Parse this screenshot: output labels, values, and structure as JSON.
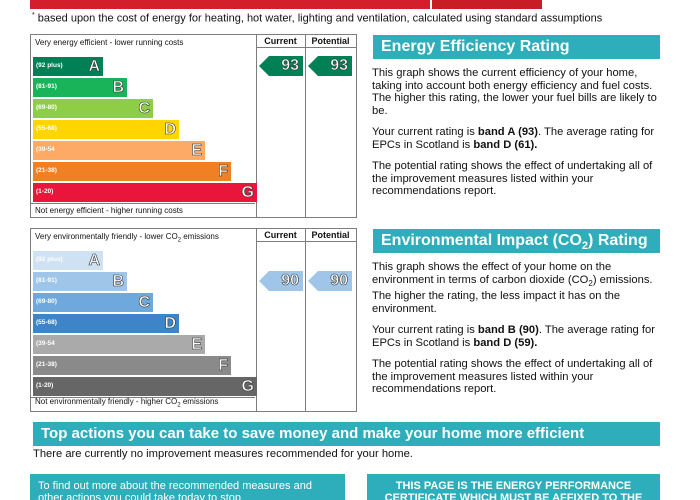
{
  "footnote": {
    "marker": "*",
    "text": "based upon the cost of energy for heating, hot water, lighting and ventilation, calculated using standard assumptions"
  },
  "columns": {
    "current": "Current",
    "potential": "Potential"
  },
  "energy_chart": {
    "top_label": "Very energy efficient - lower running costs",
    "bottom_label": "Not energy efficient - higher running costs",
    "bands": [
      {
        "range": "(92 plus)",
        "letter": "A",
        "color": "#008054"
      },
      {
        "range": "(81-91)",
        "letter": "B",
        "color": "#19b459"
      },
      {
        "range": "(69-80)",
        "letter": "C",
        "color": "#8dce46"
      },
      {
        "range": "(55-68)",
        "letter": "D",
        "color": "#ffd500"
      },
      {
        "range": "(39-54",
        "letter": "E",
        "color": "#fcaa65"
      },
      {
        "range": "(21-38)",
        "letter": "F",
        "color": "#ef8023"
      },
      {
        "range": "(1-20)",
        "letter": "G",
        "color": "#e9153b"
      }
    ],
    "current": 93,
    "potential": 93,
    "arrow_color": "#008054",
    "arrow_text_color": "#ffffff"
  },
  "environment_chart": {
    "top_label_pre": "Very environmentally friendly - lower CO",
    "top_label_sub": "2",
    "top_label_post": " emissions",
    "bottom_label_pre": "Not environmentally friendly - higher CO",
    "bottom_label_sub": "2",
    "bottom_label_post": " emissions",
    "bands": [
      {
        "range": "(92 plus)",
        "letter": "A",
        "color": "#cfe2f3"
      },
      {
        "range": "(81-91)",
        "letter": "B",
        "color": "#9fc5e8"
      },
      {
        "range": "(69-80)",
        "letter": "C",
        "color": "#6fa8dc"
      },
      {
        "range": "(55-68)",
        "letter": "D",
        "color": "#3d85c6"
      },
      {
        "range": "(39-54",
        "letter": "E",
        "color": "#aaaaaa"
      },
      {
        "range": "(21-38)",
        "letter": "F",
        "color": "#8a8a8a"
      },
      {
        "range": "(1-20)",
        "letter": "G",
        "color": "#666666"
      }
    ],
    "current": 90,
    "potential": 90,
    "arrow_color": "#9fc5e8",
    "arrow_text_color": "#ffffff"
  },
  "energy_panel": {
    "title": "Energy Efficiency Rating",
    "p1": "This graph shows the current efficiency of your home, taking into account both energy efficiency and fuel costs. The higher this rating, the lower your fuel bills are likely to be.",
    "p2_a": "Your current rating is ",
    "p2_b": "band A (93)",
    "p2_c": ". The average rating for EPCs in Scotland is ",
    "p2_d": "band D (61).",
    "p3": "The potential rating shows the effect of undertaking all of the improvement measures listed within your recommendations report."
  },
  "environment_panel": {
    "title_pre": "Environmental Impact (CO",
    "title_sub": "2",
    "title_post": ") Rating",
    "p1_a": "This graph shows the effect of your home on the environment in terms of carbon dioxide (CO",
    "p1_sub": "2",
    "p1_b": ") emissions. The higher the rating, the less impact it has on the environment.",
    "p2_a": "Your current rating is ",
    "p2_b": "band B (90)",
    "p2_c": ". The average rating for EPCs in Scotland is ",
    "p2_d": "band D (59).",
    "p3": "The potential rating shows the effect of undertaking all of the improvement measures listed within your recommendations report."
  },
  "actions": {
    "title": "Top actions you can take to save money and make your home more efficient",
    "text": "There are currently no improvement measures recommended for your home.",
    "box_left": "To find out more about the recommended measures and other actions you could take today to stop",
    "box_right": "THIS PAGE IS THE ENERGY PERFORMANCE CERTIFICATE WHICH MUST BE AFFIXED TO THE"
  }
}
